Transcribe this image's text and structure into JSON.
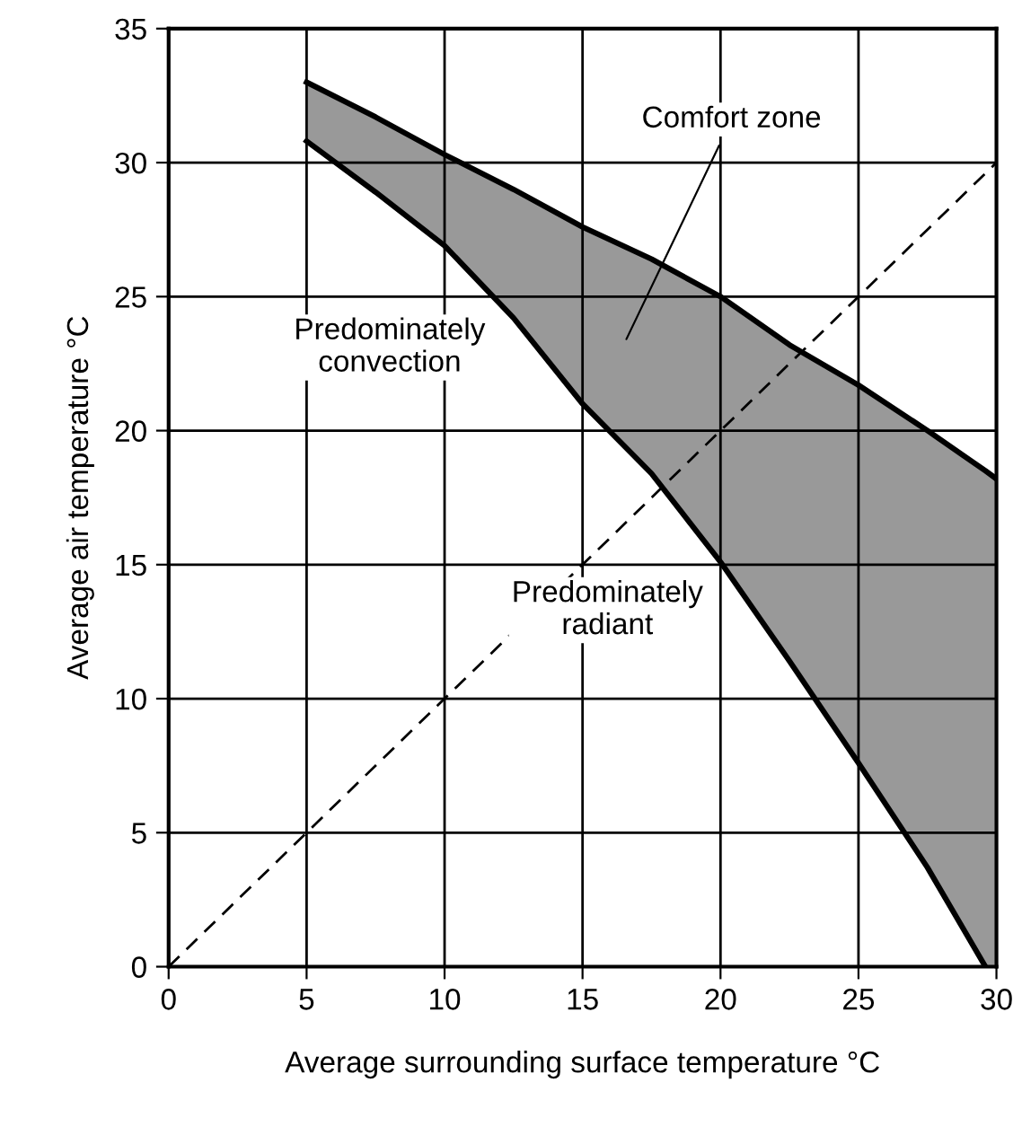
{
  "chart_data": {
    "type": "line",
    "xlabel": "Average surrounding surface temperature °C",
    "ylabel": "Average air temperature °C",
    "xlim": [
      0,
      30
    ],
    "ylim": [
      0,
      35
    ],
    "xticks": [
      0,
      5,
      10,
      15,
      20,
      25,
      30
    ],
    "yticks": [
      0,
      5,
      10,
      15,
      20,
      25,
      30,
      35
    ],
    "grid": true,
    "series": [
      {
        "color": "#000000",
        "x": [
          5,
          7.5,
          10,
          12.5,
          15,
          17.5,
          20,
          22.5,
          25,
          27.5,
          29.6,
          30
        ],
        "values": [
          33.0,
          31.7,
          30.3,
          29.0,
          27.6,
          26.4,
          25.0,
          23.2,
          21.7,
          20.0,
          18.5,
          18.2
        ],
        "lower": [
          30.8,
          28.9,
          26.9,
          24.2,
          21.0,
          18.4,
          15.1,
          11.4,
          7.6,
          3.7,
          0,
          0
        ],
        "upper": [
          33.0,
          31.7,
          30.3,
          29.0,
          27.6,
          26.4,
          25.0,
          23.2,
          21.7,
          20.0,
          18.5,
          18.2
        ]
      },
      {
        "color": "#000000",
        "x": [
          5,
          7.5,
          10,
          12.5,
          15,
          17.5,
          20,
          22.5,
          25,
          27.5,
          29.6
        ],
        "values": [
          30.8,
          28.9,
          26.9,
          24.2,
          21.0,
          18.4,
          15.1,
          11.4,
          7.6,
          3.7,
          0
        ]
      },
      {
        "color": "#000000",
        "line_style": "dashed",
        "x": [
          0,
          30
        ],
        "values": [
          0,
          30
        ]
      }
    ],
    "annotations": [
      "Comfort zone",
      "Predominately\nconvection",
      "Predominately\nradiant"
    ]
  }
}
